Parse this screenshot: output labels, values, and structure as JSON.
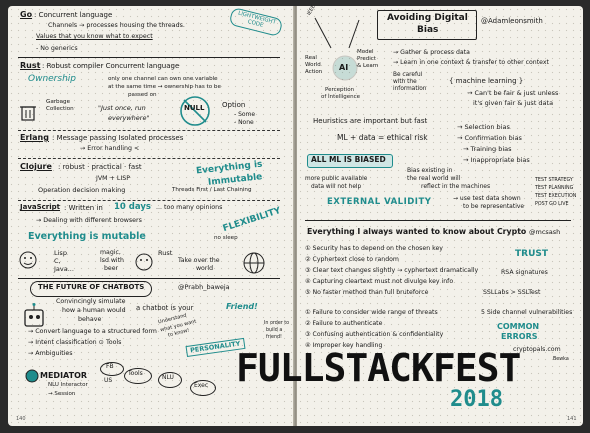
{
  "left": {
    "go": {
      "key": "Go",
      "line1": ": Concurrent language",
      "line2": "Channels → processes housing the threads.",
      "line3": "Values that you know what to expect",
      "line4": "- No generics",
      "badge": "LIGHTWEIGHT CODE"
    },
    "rust": {
      "key": "Rust",
      "line1": ": Robust compiler   Concurrent language",
      "ownership": "Ownership",
      "own_text1": "only one channel can own one variable",
      "own_text2": "at the same time → ownership has to be",
      "own_text3": "passed on",
      "gc": "Garbage",
      "gc2": "Collection",
      "quote": "\"Just once, run",
      "quote2": "everywhere\"",
      "null": "NULL",
      "option": "Option",
      "opt1": "- Some",
      "opt2": "- None"
    },
    "erlang": {
      "key": "Erlang",
      "line1": ": Message passing   Isolated processes",
      "line2": "→ Error handling <"
    },
    "clojure": {
      "key": "Clojure",
      "line1": ": robust · practical · fast",
      "line2": "JVM + LISP",
      "line3": "Operation decision making",
      "line4": "Threads First / Last Chaining",
      "immut": "Everything is",
      "immut2": "Immutable"
    },
    "js": {
      "key": "JavaScript",
      "line1": ": Written in",
      "days": "10 days",
      "line1b": "... too many opinions",
      "line2": "→ Dealing with different browsers",
      "flex": "FLEXIBILITY",
      "mutable": "Everything is mutable",
      "nosleep": "no sleep"
    },
    "family": {
      "lisp": "Lisp",
      "c": "C,",
      "java": "Java...",
      "magic": "magic,",
      "lsd": "lsd with",
      "beer": "beer",
      "rust": "Rust",
      "takeover": "Take over the",
      "world": "world"
    },
    "chatbots": {
      "title": "THE FUTURE OF CHATBOTS",
      "handle": "@Prabh_baweja",
      "p1": "Convincingly simulate",
      "p1b": "how a human would",
      "p1c": "behave",
      "friend": "a chatbot is your",
      "friend2": "Friend!",
      "understand": "Understand",
      "understand2": "what you want",
      "understand3": "to know!",
      "personality": "PERSONALITY",
      "inorder": "In order to",
      "inorder2": "build a",
      "inorder3": "friend!",
      "b1": "→ Convert language to a structured form",
      "b2": "→ Intent classification   ⊙ Tools",
      "b3": "→ Ambiguities",
      "mediator": "MEDIATOR",
      "fb": "FB",
      "us": "US",
      "tools": "Tools",
      "nlu": "NLU",
      "exec": "Exec",
      "nlu_int": "NLU Interactor",
      "session": "→ Session"
    },
    "page_no": "140"
  },
  "right": {
    "ai": {
      "title": "Avoiding Digital",
      "title2": "Bias",
      "handle": "@Adamleonsmith",
      "model": "Model",
      "predict": "Predict",
      "learn": "& Learn",
      "real": "Real",
      "world": "World",
      "action": "Action",
      "label": "AI",
      "perception": "Perception",
      "perception2": "of Intelligence",
      "b1": "→ Gather & process data",
      "b2": "→ Learn in one context & transfer to other context",
      "careful": "Be careful",
      "careful2": "with the",
      "careful3": "information",
      "ml": "{ machine learning }",
      "fair": "→ Can't be fair & just unless",
      "fair2": "it's given fair & just data",
      "heuristics": "Heuristics are important but fast",
      "eq": "ML + data = ethical risk",
      "sel": "→ Selection bias",
      "conf": "→ Confirmation bias",
      "train": "→ Training bias",
      "inapp": "→ Inappropriate bias",
      "biased": "ALL ML IS BIASED",
      "exist": "Bias existing in",
      "exist2": "the real world will",
      "exist3": "reflect in the machines",
      "more": "more public available",
      "more2": "data will not help",
      "ext": "EXTERNAL VALIDITY",
      "use": "→ use test data shown",
      "use2": "to be representative",
      "t1": "TEST STRATEGY",
      "t2": "TEST PLANNING",
      "t3": "TEST EXECUTION",
      "t4": "POST GO LIVE"
    },
    "crypto": {
      "title": "Everything I always wanted to know about Crypto",
      "handle": "@mcsash",
      "p1": "① Security has to depend on the chosen key",
      "p2": "② Cyphertext close to random",
      "p3": "③ Clear text changes slightly → cyphertext dramatically",
      "p4": "④ Capturing cleartext must not divulge key info",
      "p5": "⑤ No faster method than full bruteforce",
      "trust": "TRUST",
      "rsa": "RSA signatures",
      "ssl": "SSLLabs > SSLTest",
      "f1": "① Failure to consider wide range of threats",
      "side": "5 Side channel vulnerabilities",
      "f2": "② Failure to authenticate",
      "common": "COMMON",
      "errors": "ERRORS",
      "f3": "③ Confusing authentication & confidentiality",
      "f4": "④ Improper key handling",
      "site": "cryptopals.com",
      "sign": "Bewka"
    },
    "event": "FULLSTACKFEST",
    "year": "2018",
    "page_no": "141"
  },
  "colors": {
    "teal": "#1f8c8c",
    "ink": "#1a1a1a",
    "paper": "#f3f1ea"
  }
}
